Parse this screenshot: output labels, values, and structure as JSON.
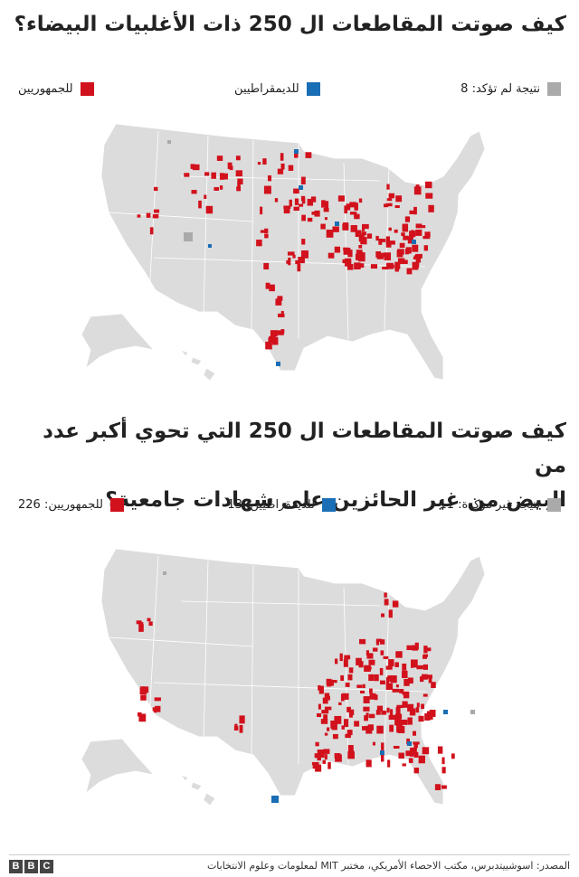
{
  "map1": {
    "title": "كيف صوتت المقاطعات ال 250 ذات الأغلبيات البيضاء؟",
    "legend": [
      {
        "label": "نتيجة لم تؤكد: 8",
        "color": "#aaaaaa"
      },
      {
        "label": "للديمقراطيين",
        "color": "#1a6eb5"
      },
      {
        "label": "للجمهوريين",
        "color": "#d1111c"
      }
    ]
  },
  "map2": {
    "title": [
      "كيف صوتت المقاطعات ال 250 التي تحوي أكبر عدد من",
      "البيض من غير الحائزين على شهادات جامعية؟"
    ],
    "legend": [
      {
        "label": "نتيجة غير مؤكدة: 11",
        "color": "#aaaaaa"
      },
      {
        "label": "للديمقراطيين: 13",
        "color": "#1a6eb5"
      },
      {
        "label": "للجمهوريين: 226",
        "color": "#d1111c"
      }
    ]
  },
  "footer": {
    "source": "المصدر: اسوشييتدبرس، مكتب الاحصاء الأمريكي، مختبر MIT لمعلومات وعلوم الانتخابات",
    "logo": [
      "B",
      "B",
      "C"
    ]
  }
}
